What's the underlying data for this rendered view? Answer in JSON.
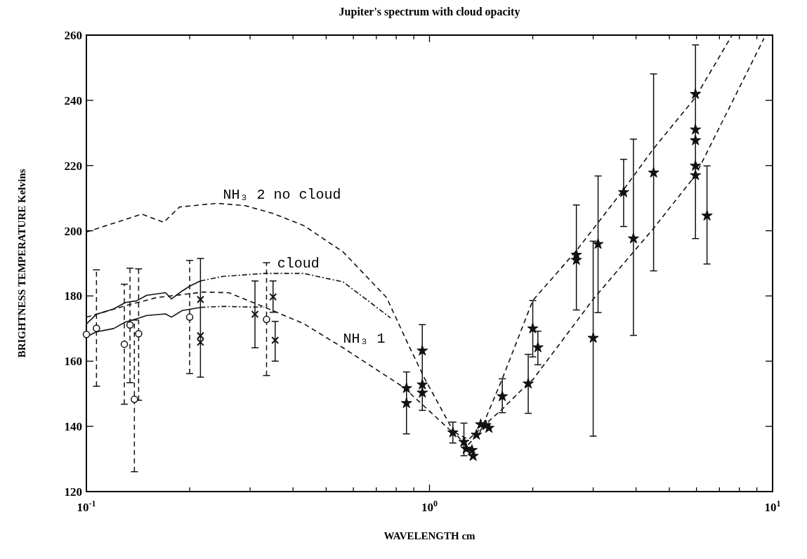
{
  "chart_data": {
    "type": "scatter",
    "title": "Jupiter's spectrum with cloud opacity",
    "xlabel": "WAVELENGTH cm",
    "ylabel": "BRIGHTNESS TEMPERATURE Kelvins",
    "log": "x",
    "xlim": [
      0.1,
      10
    ],
    "ylim": [
      120,
      260
    ],
    "xticks": [
      {
        "value": 0.1,
        "label": "10$^{-1}$"
      },
      {
        "value": 0.2,
        "label": null
      },
      {
        "value": 0.3,
        "label": null
      },
      {
        "value": 0.4,
        "label": null
      },
      {
        "value": 0.5,
        "label": null
      },
      {
        "value": 0.6,
        "label": null
      },
      {
        "value": 0.7,
        "label": null
      },
      {
        "value": 0.8,
        "label": null
      },
      {
        "value": 0.9,
        "label": null
      },
      {
        "value": 1,
        "label": "10$^{0}$"
      },
      {
        "value": 2,
        "label": null
      },
      {
        "value": 3,
        "label": null
      },
      {
        "value": 4,
        "label": null
      },
      {
        "value": 5,
        "label": null
      },
      {
        "value": 6,
        "label": null
      },
      {
        "value": 7,
        "label": null
      },
      {
        "value": 8,
        "label": null
      },
      {
        "value": 9,
        "label": null
      },
      {
        "value": 10,
        "label": "10$^{1}$"
      }
    ],
    "yticks": [
      120,
      140,
      160,
      180,
      200,
      220,
      240,
      260
    ],
    "grid": false,
    "annotations": [
      {
        "text": "NH₃ 2 no cloud",
        "x": 0.25,
        "y": 208
      },
      {
        "text": "cloud",
        "x": 0.36,
        "y": 187
      },
      {
        "text": "NH₃ 1",
        "x": 0.56,
        "y": 164
      }
    ],
    "series": [
      {
        "type": "line",
        "line_style": "dashed",
        "marker": "none",
        "color": "#111111",
        "x": [
          0.1,
          0.145,
          0.168,
          0.187,
          0.24,
          0.29,
          0.35,
          0.43,
          0.56,
          0.75,
          0.87,
          0.97,
          1.17,
          1.28,
          1.4,
          1.63,
          2.0,
          2.68,
          3.69,
          4.5,
          5.96,
          7.6
        ],
        "values": [
          199.6,
          205.1,
          202.6,
          207.3,
          208.4,
          207.7,
          205.3,
          201.6,
          193.5,
          179.5,
          164.8,
          154.5,
          138.8,
          133.8,
          138,
          154.6,
          178.6,
          193.9,
          212.8,
          225.2,
          240.9,
          259.8
        ]
      },
      {
        "type": "line",
        "line_style": "dashed",
        "marker": "none",
        "color": "#111111",
        "x": [
          0.1,
          0.13,
          0.16,
          0.22,
          0.26,
          0.33,
          0.43,
          0.56,
          0.84,
          1.15,
          1.3,
          1.63,
          1.94,
          2.0,
          3.0,
          4.48,
          5.96,
          9.44
        ],
        "values": [
          173.5,
          177,
          179.5,
          181.2,
          181,
          176.6,
          171.5,
          164.1,
          152.0,
          138.8,
          136,
          145.3,
          153.2,
          154.3,
          179,
          200.5,
          217,
          259
        ]
      },
      {
        "type": "line",
        "line_style": "solid",
        "marker": "none",
        "color": "#111111",
        "x": [
          0.1,
          0.107,
          0.12,
          0.13,
          0.14,
          0.15,
          0.17,
          0.177,
          0.19,
          0.2,
          0.215
        ],
        "values": [
          171.4,
          174.4,
          176,
          178,
          178.5,
          180.2,
          181,
          179.1,
          181.5,
          183,
          184.6
        ]
      },
      {
        "type": "line",
        "line_style": "dotted",
        "marker": "none",
        "color": "#111111",
        "x": [
          0.215,
          0.25,
          0.33,
          0.43,
          0.56,
          0.77
        ],
        "values": [
          184.6,
          186,
          186.9,
          186.9,
          184.3,
          173.3
        ]
      },
      {
        "type": "line",
        "line_style": "solid",
        "marker": "none",
        "color": "#111111",
        "x": [
          0.1,
          0.107,
          0.12,
          0.13,
          0.14,
          0.15,
          0.17,
          0.177,
          0.19,
          0.215
        ],
        "values": [
          167.5,
          169,
          170,
          172,
          173,
          174,
          174.5,
          173.5,
          175.5,
          176.5
        ]
      },
      {
        "type": "line",
        "line_style": "dotted",
        "marker": "none",
        "color": "#111111",
        "x": [
          0.215,
          0.25,
          0.3,
          0.33
        ],
        "values": [
          176.5,
          176.8,
          176.6,
          176.6
        ]
      },
      {
        "marker": "circle",
        "line_style": "dashed",
        "color": "#111111",
        "x": [
          0.1,
          0.107,
          0.129,
          0.134,
          0.138,
          0.142,
          0.2,
          0.335
        ],
        "values": [
          168.2,
          170.1,
          165.2,
          171.1,
          148.3,
          168.4,
          173.5,
          172.8
        ],
        "errors": [
          null,
          [
            152.3,
            188.0
          ],
          [
            146.8,
            183.6
          ],
          [
            153.4,
            188.5
          ],
          [
            126.1,
            172.6
          ],
          [
            148,
            188.3
          ],
          [
            156.2,
            190.9
          ],
          [
            155.6,
            190.2
          ]
        ]
      },
      {
        "marker": "cross",
        "line_style": "solid",
        "color": "#111111",
        "x": [
          0.215,
          0.215,
          0.215,
          0.31,
          0.35,
          0.355
        ],
        "values": [
          178.9,
          167.8,
          165.8,
          174.4,
          179.7,
          166.4
        ],
        "errors": [
          [
            155.1,
            191.5
          ],
          null,
          null,
          [
            164.1,
            184.6
          ],
          [
            175,
            184.6
          ],
          [
            160,
            172.2
          ]
        ]
      },
      {
        "marker": "star",
        "line_style": "solid",
        "color": "#111111",
        "x": [
          0.857,
          0.857,
          0.953,
          0.953,
          0.953,
          1.17,
          1.26,
          1.28,
          1.33,
          1.34,
          1.37,
          1.41,
          1.46,
          1.49,
          1.63,
          1.94,
          2.0,
          2.07,
          2.68,
          2.68,
          3.0,
          3.1,
          3.68,
          3.93,
          4.5,
          5.96,
          5.96,
          5.96,
          5.96,
          5.96,
          6.44
        ],
        "values": [
          147.1,
          151.7,
          163.2,
          152.8,
          150.3,
          138.1,
          135.2,
          133.1,
          132.7,
          130.9,
          137.4,
          140.6,
          140.3,
          139.5,
          149.2,
          153.1,
          170.0,
          164.2,
          192.6,
          191.0,
          167.1,
          195.9,
          211.8,
          197.6,
          217.8,
          241.9,
          231.0,
          227.7,
          219.9,
          217.0,
          204.6
        ],
        "errors": [
          [
            137.7,
            156.7
          ],
          null,
          [
            144.9,
            171.2
          ],
          null,
          null,
          [
            134.9,
            141.3
          ],
          [
            131,
            141
          ],
          null,
          null,
          null,
          null,
          null,
          null,
          null,
          [
            144.2,
            154.6
          ],
          [
            144.0,
            162.1
          ],
          [
            161.3,
            178.6
          ],
          [
            158.9,
            169.2
          ],
          [
            175.7,
            207.9
          ],
          null,
          [
            137.0,
            196.8
          ],
          [
            174.9,
            216.8
          ],
          [
            201.3,
            221.9
          ],
          [
            167.9,
            228.1
          ],
          [
            187.7,
            248.1
          ],
          [
            197.6,
            257
          ],
          null,
          null,
          null,
          null,
          [
            189.8,
            219.9
          ]
        ]
      }
    ]
  }
}
